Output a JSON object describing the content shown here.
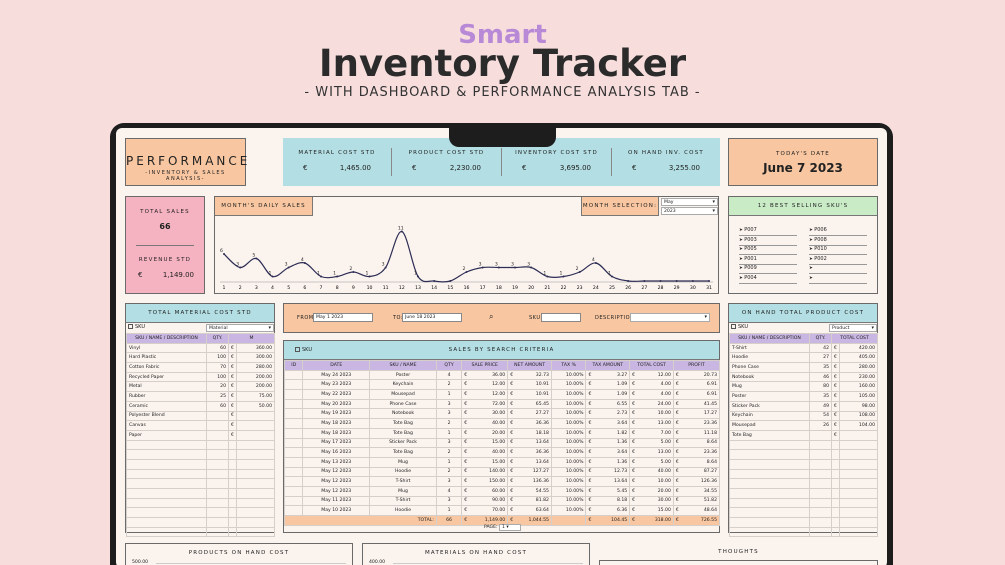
{
  "header": {
    "smart": "Smart",
    "title": "Inventory Tracker",
    "subtitle": "- WITH DASHBOARD & PERFORMANCE ANALYSIS TAB -"
  },
  "performance": {
    "title": "PERFORMANCE",
    "subtitle": "-INVENTORY & SALES ANALYSIS-"
  },
  "kpis": [
    {
      "label": "MATERIAL COST STD",
      "currency": "€",
      "value": "1,465.00"
    },
    {
      "label": "PRODUCT COST STD",
      "currency": "€",
      "value": "2,230.00"
    },
    {
      "label": "INVENTORY COST STD",
      "currency": "€",
      "value": "3,695.00"
    },
    {
      "label": "ON HAND INV. COST",
      "currency": "€",
      "value": "3,255.00"
    }
  ],
  "today": {
    "label": "TODAY'S DATE",
    "value": "June 7 2023"
  },
  "sales": {
    "total_label": "TOTAL SALES",
    "total_value": "66",
    "revenue_label": "REVENUE STD",
    "currency": "€",
    "revenue_value": "1,149.00"
  },
  "daily_chart": {
    "title": "MONTH'S DAILY SALES",
    "month_label": "MONTH SELECTION:",
    "month_value": "May",
    "year_value": "2023"
  },
  "chart_data": {
    "type": "line",
    "title": "MONTH'S DAILY SALES",
    "x": [
      1,
      2,
      3,
      4,
      5,
      6,
      7,
      8,
      9,
      10,
      11,
      12,
      13,
      14,
      15,
      16,
      17,
      18,
      19,
      20,
      21,
      22,
      23,
      24,
      25,
      26,
      27,
      28,
      29,
      30,
      31
    ],
    "values": [
      6,
      3,
      5,
      1,
      3,
      4,
      1,
      1,
      2,
      1,
      3,
      11,
      1,
      0,
      0,
      2,
      3,
      3,
      3,
      3,
      1,
      1,
      2,
      4,
      1,
      0,
      0,
      0,
      0,
      0,
      0
    ],
    "point_labels": [
      "6",
      "3",
      "5",
      "1",
      "3",
      "4",
      "1",
      "1",
      "2",
      "1",
      "3",
      "11",
      "1",
      "",
      "",
      "2",
      "3",
      "3",
      "3",
      "3",
      "1",
      "1",
      "2",
      "4",
      "1",
      "",
      "",
      "",
      "",
      "",
      ""
    ],
    "ylim": [
      0,
      12
    ]
  },
  "best_sellers": {
    "title": "12 BEST SELLING SKU'S",
    "col1": [
      "P007",
      "P003",
      "P005",
      "P001",
      "P009",
      "P004"
    ],
    "col2": [
      "P006",
      "P008",
      "P010",
      "P002",
      "",
      ""
    ]
  },
  "material_table": {
    "title": "TOTAL MATERIAL COST STD",
    "sku_label": "SKU",
    "filter": "Material",
    "headers": [
      "SKU / NAME / DESCRIPTION",
      "QTY.",
      "M"
    ],
    "rows": [
      {
        "name": "Vinyl",
        "qty": "60",
        "cur": "€",
        "val": "360.00"
      },
      {
        "name": "Hard Plastic",
        "qty": "100",
        "cur": "€",
        "val": "300.00"
      },
      {
        "name": "Cotton Fabric",
        "qty": "70",
        "cur": "€",
        "val": "280.00"
      },
      {
        "name": "Recycled Paper",
        "qty": "100",
        "cur": "€",
        "val": "200.00"
      },
      {
        "name": "Metal",
        "qty": "20",
        "cur": "€",
        "val": "200.00"
      },
      {
        "name": "Rubber",
        "qty": "25",
        "cur": "€",
        "val": "75.00"
      },
      {
        "name": "Ceramic",
        "qty": "60",
        "cur": "€",
        "val": "50.00"
      },
      {
        "name": "Polyester Blend",
        "qty": "",
        "cur": "€",
        "val": ""
      },
      {
        "name": "Canvas",
        "qty": "",
        "cur": "€",
        "val": ""
      },
      {
        "name": "Paper",
        "qty": "",
        "cur": "€",
        "val": ""
      }
    ]
  },
  "search": {
    "from_label": "FROM:",
    "from_value": "May 1 2023",
    "to_label": "TO:",
    "to_value": "June 18 2023",
    "sku_label": "SKU:",
    "desc_label": "DESCRIPTION:",
    "sku_check_label": "SKU",
    "title": "SALES BY SEARCH CRITERIA",
    "headers": [
      "ID",
      "DATE",
      "SKU / NAME",
      "QTY",
      "SALE PRICE",
      "NET AMOUNT",
      "TAX %",
      "TAX AMOUNT",
      "TOTAL COST",
      "PROFIT"
    ],
    "rows": [
      [
        "",
        "May 24 2023",
        "Poster",
        "4",
        "36.00",
        "32.73",
        "10.00%",
        "3.27",
        "12.00",
        "20.73"
      ],
      [
        "",
        "May 23 2023",
        "Keychain",
        "2",
        "12.00",
        "10.91",
        "10.00%",
        "1.09",
        "4.00",
        "6.91"
      ],
      [
        "",
        "May 22 2023",
        "Mousepad",
        "1",
        "12.00",
        "10.91",
        "10.00%",
        "1.09",
        "4.00",
        "6.91"
      ],
      [
        "",
        "May 20 2023",
        "Phone Case",
        "3",
        "72.00",
        "65.45",
        "10.00%",
        "6.55",
        "24.00",
        "41.45"
      ],
      [
        "",
        "May 19 2023",
        "Notebook",
        "3",
        "30.00",
        "27.27",
        "10.00%",
        "2.73",
        "10.00",
        "17.27"
      ],
      [
        "",
        "May 18 2023",
        "Tote Bag",
        "2",
        "40.00",
        "36.36",
        "10.00%",
        "3.64",
        "13.00",
        "23.36"
      ],
      [
        "",
        "May 18 2023",
        "Tote Bag",
        "1",
        "20.00",
        "18.18",
        "10.00%",
        "1.82",
        "7.00",
        "11.18"
      ],
      [
        "",
        "May 17 2023",
        "Sticker Pack",
        "3",
        "15.00",
        "13.64",
        "10.00%",
        "1.36",
        "5.00",
        "8.64"
      ],
      [
        "",
        "May 16 2023",
        "Tote Bag",
        "2",
        "40.00",
        "36.36",
        "10.00%",
        "3.64",
        "13.00",
        "23.36"
      ],
      [
        "",
        "May 13 2023",
        "Mug",
        "1",
        "15.00",
        "13.64",
        "10.00%",
        "1.36",
        "5.00",
        "8.64"
      ],
      [
        "",
        "May 12 2023",
        "Hoodie",
        "2",
        "140.00",
        "127.27",
        "10.00%",
        "12.73",
        "40.00",
        "87.27"
      ],
      [
        "",
        "May 12 2023",
        "T-Shirt",
        "3",
        "150.00",
        "136.36",
        "10.00%",
        "13.64",
        "10.00",
        "126.36"
      ],
      [
        "",
        "May 12 2023",
        "Mug",
        "4",
        "60.00",
        "54.55",
        "10.00%",
        "5.45",
        "20.00",
        "34.55"
      ],
      [
        "",
        "May 11 2023",
        "T-Shirt",
        "3",
        "90.00",
        "81.82",
        "10.00%",
        "8.18",
        "30.00",
        "51.82"
      ],
      [
        "",
        "May 10 2023",
        "Hoodie",
        "1",
        "70.00",
        "63.64",
        "10.00%",
        "6.36",
        "15.00",
        "48.64"
      ]
    ],
    "total_label": "TOTAL:",
    "total_qty": "66",
    "total_sale": "1,149.00",
    "total_net": "1,044.55",
    "total_tax": "104.45",
    "total_cost": "318.00",
    "total_profit": "726.55",
    "page_label": "PAGE:",
    "page_value": "1",
    "currency": "€"
  },
  "product_table": {
    "title": "ON HAND TOTAL PRODUCT COST",
    "sku_label": "SKU",
    "filter": "Product",
    "headers": [
      "SKU / NAME / DESCRIPTION",
      "QTY.",
      "TOTAL COST"
    ],
    "rows": [
      {
        "name": "T-Shirt",
        "qty": "42",
        "cur": "€",
        "val": "420.00"
      },
      {
        "name": "Hoodie",
        "qty": "27",
        "cur": "€",
        "val": "405.00"
      },
      {
        "name": "Phone Case",
        "qty": "35",
        "cur": "€",
        "val": "280.00"
      },
      {
        "name": "Notebook",
        "qty": "46",
        "cur": "€",
        "val": "230.00"
      },
      {
        "name": "Mug",
        "qty": "80",
        "cur": "€",
        "val": "160.00"
      },
      {
        "name": "Poster",
        "qty": "35",
        "cur": "€",
        "val": "105.00"
      },
      {
        "name": "Sticker Pack",
        "qty": "49",
        "cur": "€",
        "val": "98.00"
      },
      {
        "name": "Keychain",
        "qty": "54",
        "cur": "€",
        "val": "108.00"
      },
      {
        "name": "Mousepad",
        "qty": "26",
        "cur": "€",
        "val": "104.00"
      },
      {
        "name": "Tote Bag",
        "qty": "",
        "cur": "€",
        "val": ""
      }
    ]
  },
  "bottom": {
    "products_title": "PRODUCTS ON HAND COST",
    "products_tick": "500.00",
    "materials_title": "MATERIALS ON HAND COST",
    "materials_tick": "400.00",
    "thoughts_title": "THOUGHTS"
  }
}
